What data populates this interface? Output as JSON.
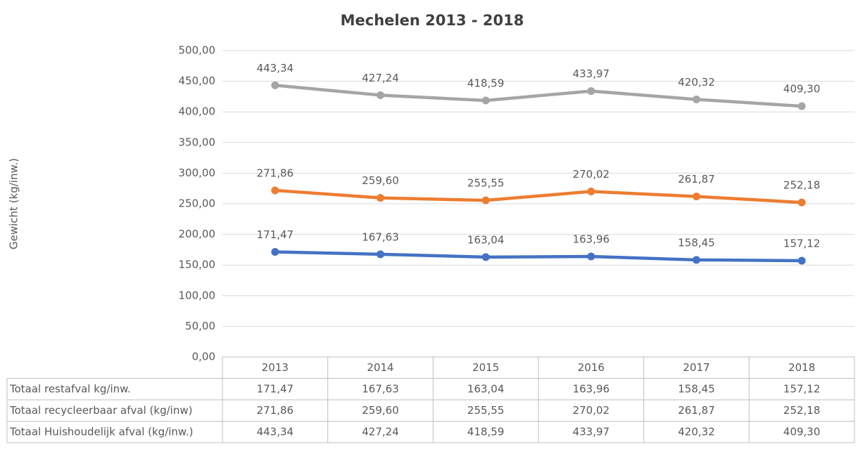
{
  "chart_data": {
    "type": "line",
    "title": "Mechelen 2013 - 2018",
    "y_label": "Gewicht (kg/inw.)",
    "categories": [
      "2013",
      "2014",
      "2015",
      "2016",
      "2017",
      "2018"
    ],
    "series": [
      {
        "name": "Totaal restafval kg/inw.",
        "color": "#4472c4",
        "values": [
          171.47,
          167.63,
          163.04,
          163.96,
          158.45,
          157.12
        ],
        "value_labels": [
          "171,47",
          "167,63",
          "163,04",
          "163,96",
          "158,45",
          "157,12"
        ]
      },
      {
        "name": "Totaal recycleerbaar afval (kg/inw)",
        "color": "#ed7d31",
        "values": [
          271.86,
          259.6,
          255.55,
          270.02,
          261.87,
          252.18
        ],
        "value_labels": [
          "271,86",
          "259,60",
          "255,55",
          "270,02",
          "261,87",
          "252,18"
        ]
      },
      {
        "name": "Totaal Huishoudelijk afval (kg/inw.)",
        "color": "#a5a5a5",
        "values": [
          443.34,
          427.24,
          418.59,
          433.97,
          420.32,
          409.3
        ],
        "value_labels": [
          "443,34",
          "427,24",
          "418,59",
          "433,97",
          "420,32",
          "409,30"
        ]
      }
    ],
    "ylim": [
      0,
      500
    ],
    "yticks": [
      {
        "value": 0,
        "label": "0,00"
      },
      {
        "value": 50,
        "label": "50,00"
      },
      {
        "value": 100,
        "label": "100,00"
      },
      {
        "value": 150,
        "label": "150,00"
      },
      {
        "value": 200,
        "label": "200,00"
      },
      {
        "value": 250,
        "label": "250,00"
      },
      {
        "value": 300,
        "label": "300,00"
      },
      {
        "value": 350,
        "label": "350,00"
      },
      {
        "value": 400,
        "label": "400,00"
      },
      {
        "value": 450,
        "label": "450,00"
      },
      {
        "value": 500,
        "label": "500,00"
      }
    ],
    "grid": true
  }
}
